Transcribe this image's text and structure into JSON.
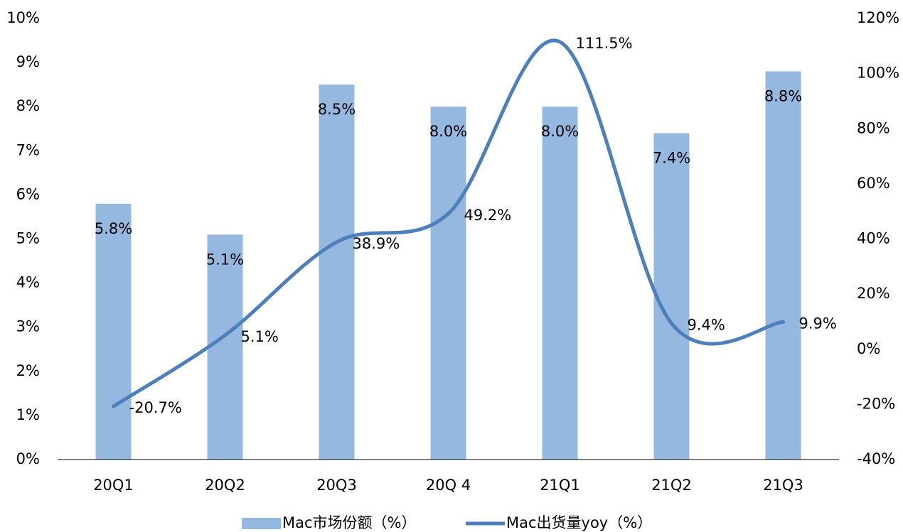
{
  "chart_data": {
    "type": "bar",
    "categories": [
      "20Q1",
      "20Q2",
      "20Q3",
      "20Q 4",
      "21Q1",
      "21Q2",
      "21Q3"
    ],
    "series": [
      {
        "name": "Mac市场份额（%）",
        "type": "bar",
        "color": "#95b8e0",
        "values": [
          5.8,
          5.1,
          8.5,
          8.0,
          8.0,
          7.4,
          8.8
        ],
        "value_labels": [
          "5.8%",
          "5.1%",
          "8.5%",
          "8.0%",
          "8.0%",
          "7.4%",
          "8.8%"
        ]
      },
      {
        "name": "Mac出货量yoy（%）",
        "type": "line",
        "axis": "y2",
        "color": "#4d80ba",
        "values": [
          -20.7,
          5.1,
          38.9,
          49.2,
          111.5,
          9.4,
          9.9
        ],
        "value_labels": [
          "-20.7%",
          "5.1%",
          "38.9%",
          "49.2%",
          "111.5%",
          "9.4%",
          "9.9%"
        ]
      }
    ],
    "ylim": [
      0,
      10
    ],
    "yticks": [
      {
        "value": 0,
        "label": "0%"
      },
      {
        "value": 1,
        "label": "1%"
      },
      {
        "value": 2,
        "label": "2%"
      },
      {
        "value": 3,
        "label": "3%"
      },
      {
        "value": 4,
        "label": "4%"
      },
      {
        "value": 5,
        "label": "5%"
      },
      {
        "value": 6,
        "label": "6%"
      },
      {
        "value": 7,
        "label": "7%"
      },
      {
        "value": 8,
        "label": "8%"
      },
      {
        "value": 9,
        "label": "9%"
      },
      {
        "value": 10,
        "label": "10%"
      }
    ],
    "y2lim": [
      -40,
      120
    ],
    "y2ticks": [
      {
        "value": -40,
        "label": "-40%"
      },
      {
        "value": -20,
        "label": "-20%"
      },
      {
        "value": 0,
        "label": "0%"
      },
      {
        "value": 20,
        "label": "20%"
      },
      {
        "value": 40,
        "label": "40%"
      },
      {
        "value": 60,
        "label": "60%"
      },
      {
        "value": 80,
        "label": "80%"
      },
      {
        "value": 100,
        "label": "100%"
      },
      {
        "value": 120,
        "label": "120%"
      }
    ],
    "grid": false,
    "legend": "bottom"
  }
}
